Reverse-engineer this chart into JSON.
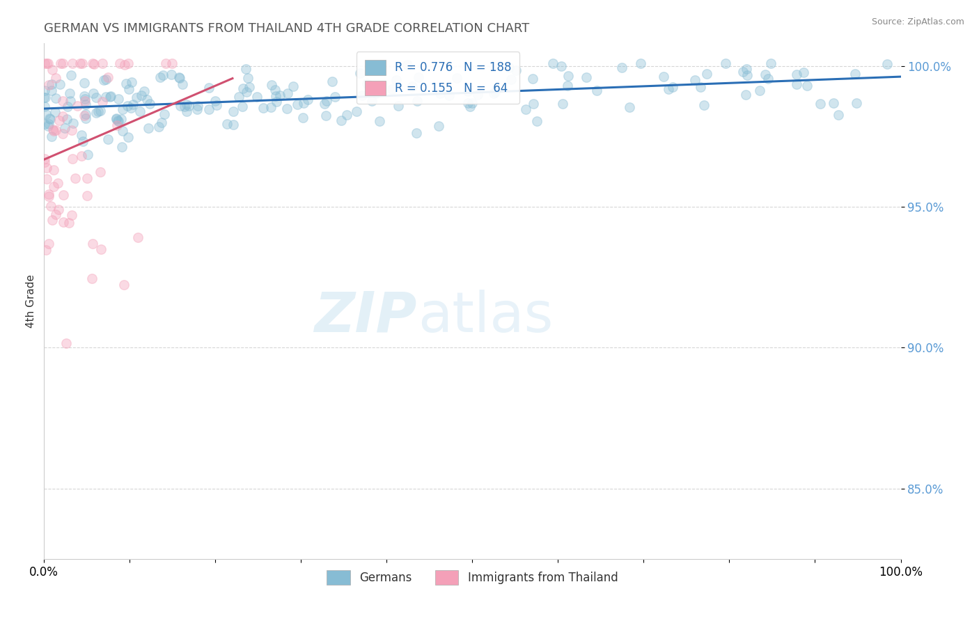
{
  "title": "GERMAN VS IMMIGRANTS FROM THAILAND 4TH GRADE CORRELATION CHART",
  "source": "Source: ZipAtlas.com",
  "ylabel": "4th Grade",
  "xlim": [
    0.0,
    1.0
  ],
  "ylim": [
    0.825,
    1.008
  ],
  "yticks": [
    0.85,
    0.9,
    0.95,
    1.0
  ],
  "ytick_labels": [
    "85.0%",
    "90.0%",
    "95.0%",
    "100.0%"
  ],
  "watermark_zip": "ZIP",
  "watermark_atlas": "atlas",
  "blue_color": "#87bcd4",
  "pink_color": "#f4a0b8",
  "blue_line_color": "#2a6eb5",
  "pink_line_color": "#d05070",
  "background_color": "#ffffff",
  "title_color": "#555555",
  "title_fontsize": 13,
  "source_fontsize": 9,
  "axis_color": "#5b9bd5",
  "N_german": 188,
  "N_thailand": 64,
  "R_german": 0.776,
  "R_thailand": 0.155,
  "legend_r_color": "#2a6eb5",
  "legend_n_color": "#2a6eb5"
}
